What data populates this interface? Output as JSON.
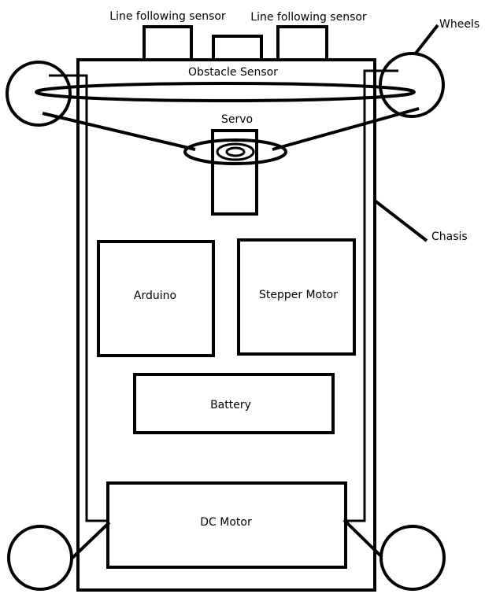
{
  "labels": {
    "line_sensor_left": "Line following sensor",
    "line_sensor_right": "Line following sensor",
    "wheels": "Wheels",
    "obstacle_sensor": "Obstacle Sensor",
    "servo": "Servo",
    "chasis": "Chasis",
    "arduino": "Arduino",
    "stepper_motor": "Stepper Motor",
    "battery": "Battery",
    "dc_motor": "DC Motor"
  }
}
